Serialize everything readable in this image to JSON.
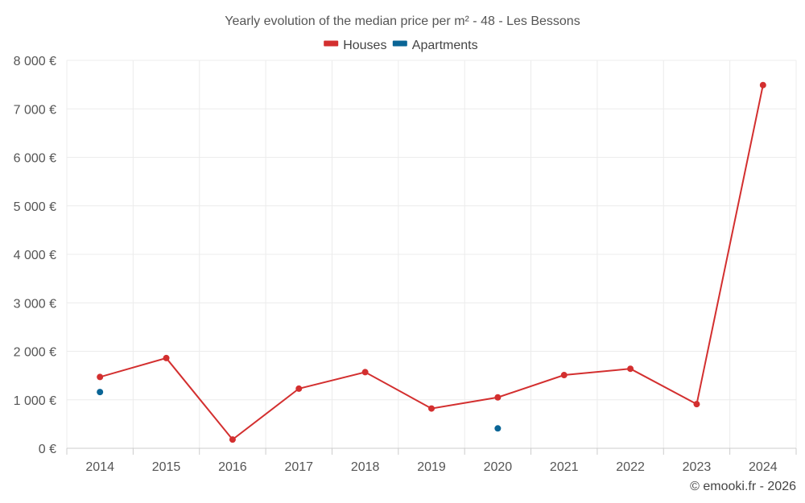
{
  "chart_data": {
    "type": "line",
    "title": "Yearly evolution of the median price per m² - 48 - Les Bessons",
    "x": [
      "2014",
      "2015",
      "2016",
      "2017",
      "2018",
      "2019",
      "2020",
      "2021",
      "2022",
      "2023",
      "2024"
    ],
    "ylim": [
      0,
      8000
    ],
    "y_ticks": [
      0,
      1000,
      2000,
      3000,
      4000,
      5000,
      6000,
      7000,
      8000
    ],
    "y_tick_labels": [
      "0 €",
      "1 000 €",
      "2 000 €",
      "3 000 €",
      "4 000 €",
      "5 000 €",
      "6 000 €",
      "7 000 €",
      "8 000 €"
    ],
    "grid": true,
    "legend_position": "top-center",
    "series": [
      {
        "name": "Houses",
        "color": "#d32f2f",
        "values": [
          1470,
          1860,
          180,
          1230,
          1570,
          820,
          1050,
          1510,
          1640,
          910,
          7490
        ]
      },
      {
        "name": "Apartments",
        "color": "#0a6596",
        "values": [
          1160,
          null,
          null,
          null,
          null,
          null,
          410,
          null,
          null,
          null,
          null
        ]
      }
    ],
    "credit": "© emooki.fr - 2026"
  }
}
